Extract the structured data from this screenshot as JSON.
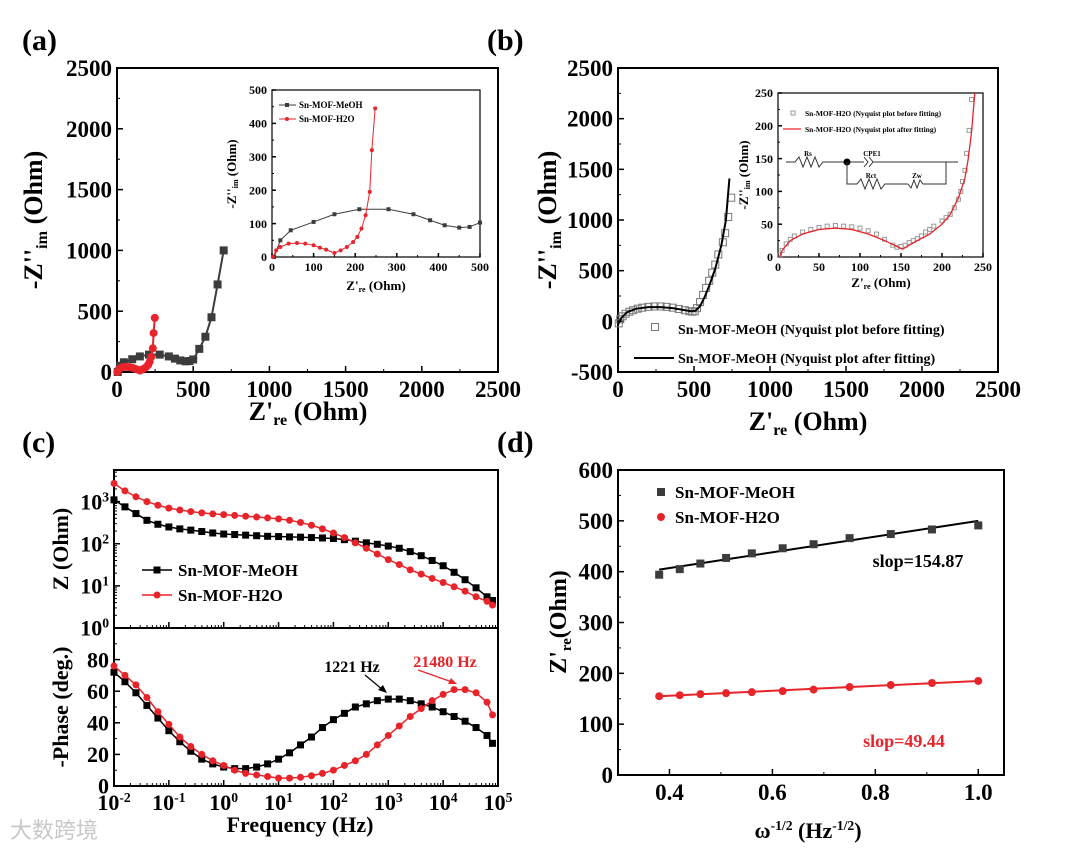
{
  "panel_labels": {
    "a": "(a)",
    "b": "(b)",
    "c": "(c)",
    "d": "(d)"
  },
  "watermark": "大数跨境",
  "colors": {
    "meoh": "#3c3c3c",
    "h2o": "#e8242b",
    "fit_black": "#000000",
    "hollow": "#777777"
  },
  "chart_data": [
    {
      "id": "a",
      "type": "line",
      "xlabel": [
        {
          "t": "Z'"
        },
        {
          "t": "re",
          "v": "sub"
        },
        {
          "t": " (Ohm)"
        }
      ],
      "ylabel": [
        {
          "t": "-Z''"
        },
        {
          "t": "im",
          "v": "sub"
        },
        {
          "t": " (Ohm)"
        }
      ],
      "xlim": [
        0,
        2500
      ],
      "ylim": [
        0,
        2500
      ],
      "x_ticks": [
        "0",
        "500",
        "1000",
        "1500",
        "2000",
        "2500"
      ],
      "y_ticks": [
        "0",
        "500",
        "1000",
        "1500",
        "2000",
        "2500"
      ],
      "series": [
        {
          "name": "Sn-MOF-MeOH",
          "x": [
            5,
            20,
            45,
            100,
            150,
            210,
            280,
            340,
            380,
            415,
            450,
            475,
            500,
            540,
            580,
            620,
            660,
            700
          ],
          "y": [
            0,
            50,
            80,
            105,
            128,
            143,
            143,
            128,
            110,
            95,
            88,
            90,
            103,
            190,
            290,
            450,
            720,
            1000
          ]
        },
        {
          "name": "Sn-MOF-H2O",
          "x": [
            2,
            10,
            20,
            40,
            60,
            80,
            100,
            115,
            130,
            150,
            165,
            180,
            195,
            205,
            215,
            225,
            235,
            240,
            248
          ],
          "y": [
            0,
            20,
            30,
            40,
            42,
            40,
            35,
            28,
            22,
            12,
            20,
            30,
            45,
            60,
            85,
            125,
            195,
            320,
            445
          ]
        }
      ],
      "inset": {
        "xlabel": [
          {
            "t": "Z'"
          },
          {
            "t": "re",
            "v": "sub"
          },
          {
            "t": " (Ohm)"
          }
        ],
        "ylabel": [
          {
            "t": "-Z''"
          },
          {
            "t": "im",
            "v": "sub"
          },
          {
            "t": " (Ohm)"
          }
        ],
        "xlim": [
          0,
          500
        ],
        "ylim": [
          0,
          500
        ],
        "x_ticks": [
          "0",
          "100",
          "200",
          "300",
          "400",
          "500"
        ],
        "y_ticks": [
          "0",
          "100",
          "200",
          "300",
          "400",
          "500"
        ],
        "legend": [
          "Sn-MOF-MeOH",
          "Sn-MOF-H2O"
        ]
      }
    },
    {
      "id": "b",
      "type": "scatter+line",
      "xlabel": [
        {
          "t": "Z'"
        },
        {
          "t": "re",
          "v": "sub"
        },
        {
          "t": " (Ohm)"
        }
      ],
      "ylabel": [
        {
          "t": "-Z''"
        },
        {
          "t": "im",
          "v": "sub"
        },
        {
          "t": " (Ohm)"
        }
      ],
      "xlim": [
        0,
        2500
      ],
      "ylim": [
        -500,
        2500
      ],
      "x_ticks": [
        "0",
        "500",
        "1000",
        "1500",
        "2000",
        "2500"
      ],
      "y_ticks": [
        "-500",
        "0",
        "500",
        "1000",
        "1500",
        "2000",
        "2500"
      ],
      "legend": [
        "Sn-MOF-MeOH (Nyquist plot before fitting)",
        "Sn-MOF-MeOH (Nyquist plot after fitting)"
      ],
      "series": [
        {
          "name": "Sn-MOF-MeOH (Nyquist plot before fitting)",
          "x": [
            5,
            15,
            30,
            50,
            75,
            100,
            130,
            160,
            200,
            240,
            280,
            320,
            360,
            400,
            440,
            470,
            490,
            505,
            520,
            540,
            560,
            580,
            600,
            620,
            640,
            660,
            690,
            705,
            725,
            745
          ],
          "y": [
            -20,
            20,
            50,
            75,
            95,
            110,
            125,
            135,
            143,
            147,
            147,
            143,
            135,
            122,
            110,
            100,
            95,
            100,
            130,
            190,
            260,
            330,
            400,
            480,
            560,
            660,
            780,
            870,
            1030,
            1220
          ]
        },
        {
          "name": "Sn-MOF-MeOH (Nyquist plot after fitting)",
          "x": [
            0,
            20,
            60,
            120,
            200,
            280,
            360,
            440,
            480,
            510,
            540,
            570,
            600,
            640,
            680,
            710,
            733
          ],
          "y": [
            -30,
            30,
            90,
            125,
            140,
            140,
            130,
            110,
            100,
            105,
            150,
            240,
            350,
            520,
            750,
            1000,
            1410
          ]
        }
      ],
      "inset": {
        "xlabel": [
          {
            "t": "Z'"
          },
          {
            "t": "re",
            "v": "sub"
          },
          {
            "t": " (Ohm)"
          }
        ],
        "ylabel": [
          {
            "t": "-Z''"
          },
          {
            "t": "im",
            "v": "sub"
          },
          {
            "t": " (Ohm)"
          }
        ],
        "xlim": [
          0,
          250
        ],
        "ylim": [
          0,
          250
        ],
        "x_ticks": [
          "0",
          "50",
          "100",
          "150",
          "200",
          "250"
        ],
        "y_ticks": [
          "0",
          "50",
          "100",
          "150",
          "200",
          "250"
        ],
        "legend": [
          "Sn-MOF-H2O (Nyquist plot before fitting)",
          "Sn-MOF-H2O (Nyquist plot after fitting)"
        ],
        "circuit": {
          "rs": "Rs",
          "cpe": "CPE1",
          "rct": "Rct",
          "zw": "Zw"
        },
        "series": [
          {
            "name": "Sn-MOF-H2O (Nyquist plot before fitting)",
            "x": [
              2,
              5,
              10,
              15,
              20,
              30,
              40,
              50,
              60,
              70,
              80,
              90,
              100,
              110,
              120,
              130,
              140,
              145,
              150,
              155,
              160,
              165,
              170,
              175,
              180,
              185,
              190,
              200,
              205,
              210,
              215,
              220,
              223,
              225,
              228,
              230,
              233,
              236
            ],
            "y": [
              3,
              10,
              20,
              27,
              32,
              38,
              42,
              45,
              47,
              48,
              47,
              46,
              44,
              40,
              35,
              27,
              18,
              15,
              16,
              18,
              22,
              25,
              28,
              32,
              38,
              42,
              47,
              55,
              60,
              65,
              75,
              88,
              100,
              115,
              132,
              158,
              193,
              240
            ]
          },
          {
            "name": "Sn-MOF-H2O (Nyquist plot after fitting)",
            "x": [
              2,
              5,
              15,
              30,
              50,
              70,
              90,
              110,
              130,
              145,
              152,
              160,
              170,
              185,
              200,
              210,
              220,
              228,
              232,
              236,
              240
            ],
            "y": [
              0,
              10,
              25,
              35,
              42,
              44,
              42,
              35,
              25,
              16,
              12,
              18,
              25,
              35,
              50,
              65,
              90,
              120,
              150,
              190,
              250
            ]
          }
        ]
      }
    },
    {
      "id": "c",
      "type": "line",
      "xlabel": [
        {
          "t": "Frequency (Hz)"
        }
      ],
      "ylabel_top": [
        {
          "t": "Z (Ohm)"
        }
      ],
      "ylabel_bottom": [
        {
          "t": "-Phase (deg.)"
        }
      ],
      "x_scale": "log",
      "xlim_log10": [
        -2,
        5
      ],
      "x_ticks": [
        "10^-2",
        "10^-1",
        "10^0",
        "10^1",
        "10^2",
        "10^3",
        "10^4",
        "10^5"
      ],
      "y_top_ticks": [
        "10^0",
        "10^1",
        "10^2",
        "10^3"
      ],
      "y_bottom_ticks": [
        "0",
        "20",
        "40",
        "60",
        "80"
      ],
      "ylim_bottom": [
        0,
        100
      ],
      "legend": [
        "Sn-MOF-MeOH",
        "Sn-MOF-H2O"
      ],
      "annotations": [
        {
          "text": "1221 Hz",
          "series": "Sn-MOF-MeOH"
        },
        {
          "text": "21480 Hz",
          "series": "Sn-MOF-H2O"
        }
      ],
      "log10_frequency_hz": [
        -2,
        -1.8,
        -1.6,
        -1.4,
        -1.2,
        -1,
        -0.8,
        -0.6,
        -0.4,
        -0.2,
        0,
        0.2,
        0.4,
        0.6,
        0.8,
        1,
        1.2,
        1.4,
        1.6,
        1.8,
        2,
        2.2,
        2.4,
        2.6,
        2.8,
        3,
        3.2,
        3.4,
        3.6,
        3.8,
        4,
        4.2,
        4.4,
        4.6,
        4.8,
        4.9
      ],
      "series": [
        {
          "name": "Sn-MOF-MeOH",
          "z_ohm": [
            1100,
            750,
            520,
            360,
            290,
            250,
            225,
            210,
            195,
            180,
            170,
            165,
            160,
            155,
            150,
            148,
            145,
            143,
            140,
            137,
            133,
            125,
            115,
            105,
            97,
            88,
            78,
            65,
            52,
            40,
            30,
            21,
            14,
            9,
            5.5,
            4.5
          ],
          "phase_deg": [
            72,
            66,
            59,
            51,
            43,
            35,
            28,
            22,
            17,
            14,
            12,
            11,
            11,
            12,
            14,
            17,
            21,
            26,
            31,
            37,
            42,
            46,
            50,
            52,
            54,
            55,
            55,
            54,
            52,
            50,
            47,
            44,
            41,
            37,
            32,
            27
          ]
        },
        {
          "name": "Sn-MOF-H2O",
          "z_ohm": [
            2700,
            1800,
            1300,
            1000,
            820,
            700,
            630,
            580,
            540,
            510,
            490,
            470,
            450,
            430,
            410,
            390,
            360,
            320,
            275,
            225,
            180,
            140,
            105,
            78,
            57,
            42,
            32,
            24,
            19,
            15,
            12,
            9.5,
            7.5,
            5.5,
            4.3,
            3.5
          ],
          "phase_deg": [
            76,
            70,
            64,
            56,
            47,
            39,
            31,
            25,
            20,
            16,
            13,
            10,
            8,
            7,
            6,
            5,
            5,
            5.5,
            6.5,
            8,
            10,
            13,
            16,
            20,
            26,
            32,
            38,
            44,
            49,
            54,
            58,
            61,
            61,
            59,
            53,
            45
          ]
        }
      ]
    },
    {
      "id": "d",
      "type": "scatter",
      "xlabel": [
        {
          "t": "ω"
        },
        {
          "t": "-1/2",
          "v": "sup"
        },
        {
          "t": " (Hz"
        },
        {
          "t": "-1/2",
          "v": "sup"
        },
        {
          "t": ")"
        }
      ],
      "ylabel": [
        {
          "t": "Z'"
        },
        {
          "t": "re",
          "v": "sub"
        },
        {
          "t": "(Ohm)"
        }
      ],
      "xlim": [
        0.3,
        1.05
      ],
      "ylim": [
        0,
        600
      ],
      "x_ticks": [
        "0.4",
        "0.6",
        "0.8",
        "1.0"
      ],
      "y_ticks": [
        "0",
        "100",
        "200",
        "300",
        "400",
        "500",
        "600"
      ],
      "legend": [
        "Sn-MOF-MeOH",
        "Sn-MOF-H2O"
      ],
      "x": [
        0.38,
        0.42,
        0.46,
        0.51,
        0.56,
        0.62,
        0.68,
        0.75,
        0.83,
        0.91,
        1.0
      ],
      "series": [
        {
          "name": "Sn-MOF-MeOH",
          "y": [
            394,
            405,
            416,
            427,
            436,
            446,
            454,
            466,
            474,
            483,
            491
          ],
          "fit": {
            "x": [
              0.38,
              1.0
            ],
            "y": [
              404,
              500
            ]
          },
          "slope_label": "slop=154.87"
        },
        {
          "name": "Sn-MOF-H2O",
          "y": [
            155,
            157,
            159,
            161,
            163,
            165,
            168,
            173,
            177,
            181,
            185
          ],
          "fit": {
            "x": [
              0.38,
              1.0
            ],
            "y": [
              155,
              185
            ]
          },
          "slope_label": "slop=49.44"
        }
      ]
    }
  ]
}
